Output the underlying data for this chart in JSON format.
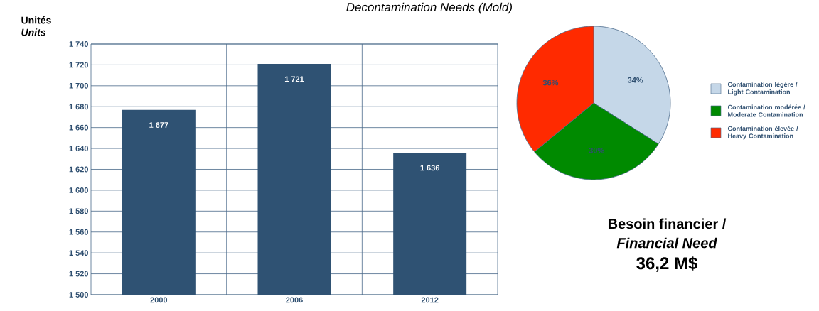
{
  "chart_data": [
    {
      "type": "bar",
      "title": "Decontamination Needs (Mold)",
      "ylabel": "Unités *Units*",
      "categories": [
        "2000",
        "2006",
        "2012"
      ],
      "values": [
        1677,
        1721,
        1636
      ],
      "color": "#2f5273",
      "value_labels": [
        "1 677",
        "1 721",
        "1 636"
      ],
      "ylim": [
        1500,
        1740
      ],
      "yticks": [
        {
          "value": 1500,
          "label": "1 500"
        },
        {
          "value": 1520,
          "label": "1 520"
        },
        {
          "value": 1540,
          "label": "1 540"
        },
        {
          "value": 1560,
          "label": "1 560"
        },
        {
          "value": 1580,
          "label": "1 580"
        },
        {
          "value": 1600,
          "label": "1 600"
        },
        {
          "value": 1620,
          "label": "1 620"
        },
        {
          "value": 1640,
          "label": "1 640"
        },
        {
          "value": 1660,
          "label": "1 660"
        },
        {
          "value": 1680,
          "label": "1 680"
        },
        {
          "value": 1700,
          "label": "1 700"
        },
        {
          "value": 1720,
          "label": "1 720"
        },
        {
          "value": 1740,
          "label": "1 740"
        }
      ],
      "grid": true
    },
    {
      "type": "pie",
      "categories": [
        "Contamination légère / Light Contamination",
        "Contamination modérée / Moderate Contamination",
        "Contamination élevée / Heavy Contamination"
      ],
      "values": [
        34,
        30,
        36
      ],
      "colors": [
        "#c5d7e8",
        "#008a00",
        "#ff2a00"
      ],
      "value_labels": [
        "34%",
        "30%",
        "36%"
      ],
      "legend": "right",
      "annotations": [
        "Besoin financier /",
        "Financial Need",
        "36,2 M$"
      ]
    }
  ]
}
